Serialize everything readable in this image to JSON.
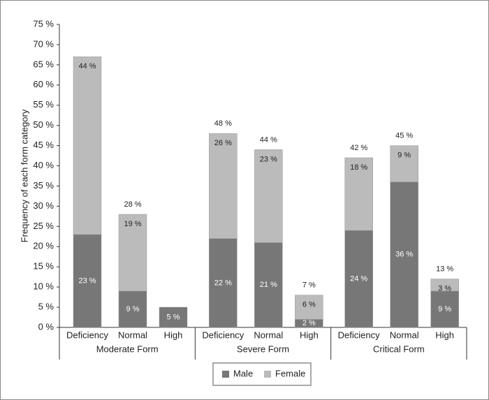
{
  "chart_data": {
    "type": "stacked-bar",
    "y_label": "Frequency of each form category",
    "categories": [
      "Deficiency",
      "Normal",
      "High",
      "Deficiency",
      "Normal",
      "High",
      "Deficiency",
      "Normal",
      "High"
    ],
    "groups": [
      "Moderate Form",
      "Severe Form",
      "Critical Form"
    ],
    "series": [
      {
        "name": "Male",
        "color": "#777777",
        "values": [
          23,
          9,
          5,
          22,
          21,
          2,
          24,
          36,
          9
        ],
        "value_labels": [
          "23 %",
          "9 %",
          "5 %",
          "22 %",
          "21 %",
          "2 %",
          "24 %",
          "36 %",
          "9 %"
        ]
      },
      {
        "name": "Female",
        "color": "#bbbbbb",
        "values": [
          44,
          19,
          null,
          26,
          23,
          6,
          18,
          9,
          3
        ],
        "value_labels": [
          "44 %",
          "19 %",
          null,
          "26 %",
          "23 %",
          "6 %",
          "18 %",
          "9 %",
          "3 %"
        ]
      }
    ],
    "totals": [
      null,
      28,
      null,
      48,
      44,
      7,
      42,
      45,
      13
    ],
    "total_labels": [
      null,
      "28 %",
      null,
      "48 %",
      "44 %",
      "7 %",
      "42 %",
      "45 %",
      "13 %"
    ],
    "ylim": [
      0,
      75
    ],
    "yticks": [
      {
        "value": 0,
        "label": "0 %"
      },
      {
        "value": 5,
        "label": "5 %"
      },
      {
        "value": 10,
        "label": "10 %"
      },
      {
        "value": 15,
        "label": "15 %"
      },
      {
        "value": 20,
        "label": "20 %"
      },
      {
        "value": 25,
        "label": "25 %"
      },
      {
        "value": 30,
        "label": "30 %"
      },
      {
        "value": 35,
        "label": "35 %"
      },
      {
        "value": 40,
        "label": "40 %"
      },
      {
        "value": 45,
        "label": "45 %"
      },
      {
        "value": 50,
        "label": "50 %"
      },
      {
        "value": 55,
        "label": "55 %"
      },
      {
        "value": 60,
        "label": "60 %"
      },
      {
        "value": 65,
        "label": "65 %"
      },
      {
        "value": 70,
        "label": "70 %"
      },
      {
        "value": 75,
        "label": "75 %"
      }
    ],
    "legend": "bottom"
  }
}
